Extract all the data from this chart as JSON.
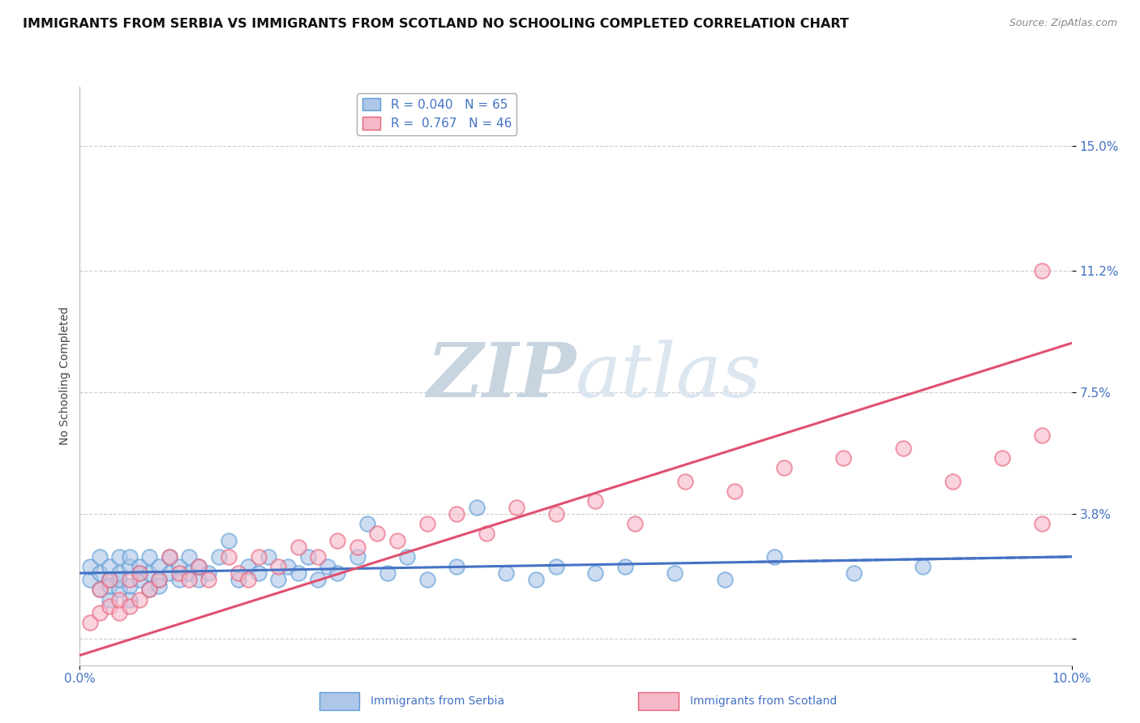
{
  "title": "IMMIGRANTS FROM SERBIA VS IMMIGRANTS FROM SCOTLAND NO SCHOOLING COMPLETED CORRELATION CHART",
  "source": "Source: ZipAtlas.com",
  "ylabel": "No Schooling Completed",
  "xmin": 0.0,
  "xmax": 0.1,
  "ymin": -0.008,
  "ymax": 0.168,
  "yticks": [
    0.0,
    0.038,
    0.075,
    0.112,
    0.15
  ],
  "ytick_labels": [
    "",
    "3.8%",
    "7.5%",
    "11.2%",
    "15.0%"
  ],
  "xticks": [
    0.0,
    0.1
  ],
  "xtick_labels": [
    "0.0%",
    "10.0%"
  ],
  "serbia_R": "0.040",
  "serbia_N": "65",
  "scotland_R": "0.767",
  "scotland_N": "46",
  "serbia_color": "#aec6e8",
  "scotland_color": "#f5b8c8",
  "serbia_edge_color": "#5b9bd5",
  "scotland_edge_color": "#e8607a",
  "serbia_line_color": "#4472c4",
  "scotland_line_color": "#e05070",
  "watermark_zip": "ZIP",
  "watermark_atlas": "atlas",
  "watermark_color": "#d5dfe8",
  "title_fontsize": 11.5,
  "source_fontsize": 9,
  "axis_label_fontsize": 10,
  "tick_fontsize": 11,
  "tick_color": "#4472c4",
  "legend_fontsize": 11,
  "grid_color": "#cccccc",
  "serbia_x": [
    0.001,
    0.001,
    0.002,
    0.002,
    0.002,
    0.003,
    0.003,
    0.003,
    0.003,
    0.004,
    0.004,
    0.004,
    0.004,
    0.005,
    0.005,
    0.005,
    0.005,
    0.006,
    0.006,
    0.006,
    0.007,
    0.007,
    0.007,
    0.008,
    0.008,
    0.008,
    0.009,
    0.009,
    0.01,
    0.01,
    0.011,
    0.011,
    0.012,
    0.012,
    0.013,
    0.014,
    0.015,
    0.016,
    0.017,
    0.018,
    0.019,
    0.02,
    0.021,
    0.022,
    0.023,
    0.024,
    0.025,
    0.026,
    0.028,
    0.029,
    0.031,
    0.033,
    0.035,
    0.038,
    0.04,
    0.043,
    0.046,
    0.048,
    0.052,
    0.055,
    0.06,
    0.065,
    0.07,
    0.078,
    0.085
  ],
  "serbia_y": [
    0.018,
    0.022,
    0.015,
    0.02,
    0.025,
    0.018,
    0.022,
    0.012,
    0.016,
    0.02,
    0.025,
    0.015,
    0.018,
    0.022,
    0.016,
    0.025,
    0.012,
    0.02,
    0.018,
    0.022,
    0.015,
    0.02,
    0.025,
    0.018,
    0.022,
    0.016,
    0.02,
    0.025,
    0.018,
    0.022,
    0.02,
    0.025,
    0.018,
    0.022,
    0.02,
    0.025,
    0.03,
    0.018,
    0.022,
    0.02,
    0.025,
    0.018,
    0.022,
    0.02,
    0.025,
    0.018,
    0.022,
    0.02,
    0.025,
    0.035,
    0.02,
    0.025,
    0.018,
    0.022,
    0.04,
    0.02,
    0.018,
    0.022,
    0.02,
    0.022,
    0.02,
    0.018,
    0.025,
    0.02,
    0.022
  ],
  "scotland_x": [
    0.001,
    0.002,
    0.002,
    0.003,
    0.003,
    0.004,
    0.004,
    0.005,
    0.005,
    0.006,
    0.006,
    0.007,
    0.008,
    0.009,
    0.01,
    0.011,
    0.012,
    0.013,
    0.015,
    0.016,
    0.017,
    0.018,
    0.02,
    0.022,
    0.024,
    0.026,
    0.028,
    0.03,
    0.032,
    0.035,
    0.038,
    0.041,
    0.044,
    0.048,
    0.052,
    0.056,
    0.061,
    0.066,
    0.071,
    0.077,
    0.083,
    0.088,
    0.093,
    0.097,
    0.097,
    0.097
  ],
  "scotland_y": [
    0.005,
    0.008,
    0.015,
    0.01,
    0.018,
    0.008,
    0.012,
    0.01,
    0.018,
    0.012,
    0.02,
    0.015,
    0.018,
    0.025,
    0.02,
    0.018,
    0.022,
    0.018,
    0.025,
    0.02,
    0.018,
    0.025,
    0.022,
    0.028,
    0.025,
    0.03,
    0.028,
    0.032,
    0.03,
    0.035,
    0.038,
    0.032,
    0.04,
    0.038,
    0.042,
    0.035,
    0.048,
    0.045,
    0.052,
    0.055,
    0.058,
    0.048,
    0.055,
    0.062,
    0.035,
    0.112
  ]
}
